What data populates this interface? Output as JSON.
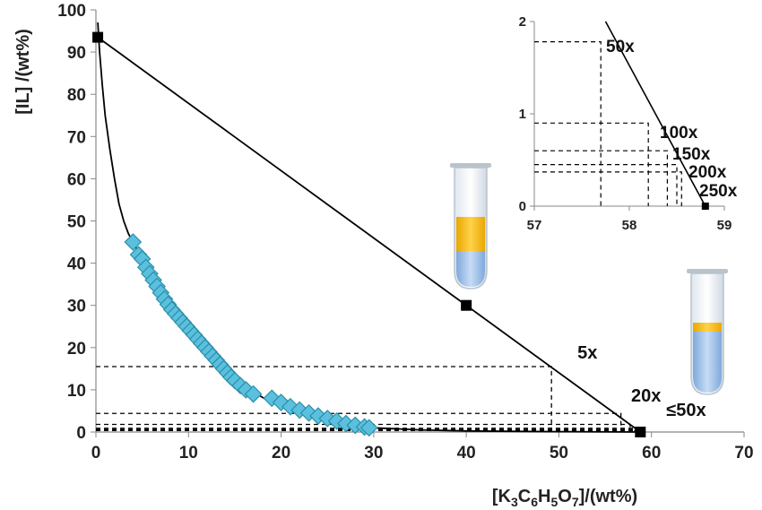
{
  "chart_data": [
    {
      "type": "scatter",
      "xlabel": "[K3C6H5O7]/(wt%)",
      "ylabel": "[IL] /(wt%)",
      "xlim": [
        0,
        70
      ],
      "ylim": [
        0,
        100
      ],
      "x_ticks": [
        "0",
        "10",
        "20",
        "30",
        "40",
        "50",
        "60",
        "70"
      ],
      "y_ticks": [
        "0",
        "10",
        "20",
        "30",
        "40",
        "50",
        "60",
        "70",
        "80",
        "90",
        "100"
      ],
      "grid": false,
      "binodal_points": [
        [
          4,
          45
        ],
        [
          4.6,
          42
        ],
        [
          5,
          41
        ],
        [
          5.4,
          39
        ],
        [
          5.8,
          37.5
        ],
        [
          6.2,
          36
        ],
        [
          6.6,
          34.5
        ],
        [
          7,
          33
        ],
        [
          7.4,
          31.5
        ],
        [
          7.8,
          30.2
        ],
        [
          8.2,
          29
        ],
        [
          8.6,
          28
        ],
        [
          9,
          27
        ],
        [
          9.4,
          26
        ],
        [
          9.8,
          25
        ],
        [
          10.2,
          24
        ],
        [
          10.6,
          23
        ],
        [
          11,
          22
        ],
        [
          11.4,
          21
        ],
        [
          11.8,
          20
        ],
        [
          12.2,
          19
        ],
        [
          12.6,
          18
        ],
        [
          13,
          17
        ],
        [
          13.4,
          16
        ],
        [
          13.8,
          15
        ],
        [
          14.2,
          14
        ],
        [
          14.6,
          13
        ],
        [
          15,
          12.2
        ],
        [
          15.6,
          11
        ],
        [
          16.2,
          10
        ],
        [
          17,
          9
        ],
        [
          19,
          8
        ],
        [
          20,
          7
        ],
        [
          21,
          6
        ],
        [
          22,
          5.2
        ],
        [
          23,
          4.5
        ],
        [
          24,
          3.8
        ],
        [
          25,
          3.2
        ],
        [
          26,
          2.6
        ],
        [
          27,
          2
        ],
        [
          28,
          1.6
        ],
        [
          29,
          1.2
        ],
        [
          29.5,
          1
        ]
      ],
      "binodal_curve": [
        [
          0.2,
          97
        ],
        [
          0.4,
          90
        ],
        [
          0.7,
          82
        ],
        [
          1,
          75
        ],
        [
          1.5,
          67
        ],
        [
          2,
          60
        ],
        [
          2.5,
          54
        ],
        [
          3,
          50
        ],
        [
          3.5,
          47
        ],
        [
          4,
          45
        ],
        [
          5,
          41
        ],
        [
          6,
          37
        ],
        [
          7,
          33
        ],
        [
          8,
          29.5
        ],
        [
          9,
          26.5
        ],
        [
          10,
          24
        ],
        [
          11,
          21.5
        ],
        [
          12,
          19.3
        ],
        [
          13,
          17
        ],
        [
          14,
          14.8
        ],
        [
          15,
          12.8
        ],
        [
          16,
          11
        ],
        [
          17,
          9.5
        ],
        [
          18,
          8.2
        ],
        [
          19,
          7
        ],
        [
          20,
          6
        ],
        [
          22,
          4.5
        ],
        [
          24,
          3.2
        ],
        [
          26,
          2.2
        ],
        [
          28,
          1.5
        ],
        [
          30,
          1
        ],
        [
          35,
          0.5
        ],
        [
          40,
          0.25
        ],
        [
          50,
          0.08
        ],
        [
          58.8,
          0
        ]
      ],
      "tie_line": [
        [
          0.2,
          93.5
        ],
        [
          58.8,
          0
        ]
      ],
      "tie_line_points": [
        [
          0.2,
          93.5
        ],
        [
          40,
          30
        ],
        [
          58.8,
          0
        ]
      ],
      "dashed_levels": [
        {
          "x": 49.2,
          "y": 15.5,
          "label": "5x"
        },
        {
          "x": 56.7,
          "y": 4.4,
          "label": "20x"
        },
        {
          "x": 57.7,
          "y": 1.8,
          "label": ""
        },
        {
          "x": 58.2,
          "y": 0.9,
          "label": ""
        },
        {
          "x": 58.4,
          "y": 0.6,
          "label": ""
        },
        {
          "x": 58.5,
          "y": 0.45,
          "label": ""
        },
        {
          "x": 58.6,
          "y": 0.35,
          "label": ""
        }
      ],
      "annotations": [
        "5x",
        "20x",
        "≤50x"
      ]
    },
    {
      "type": "line",
      "role": "inset",
      "xlim": [
        57,
        59
      ],
      "ylim": [
        0,
        2
      ],
      "x_ticks": [
        "57",
        "58",
        "59"
      ],
      "y_ticks": [
        "0",
        "1",
        "2"
      ],
      "line": [
        [
          57.75,
          2.0
        ],
        [
          58.8,
          0
        ]
      ],
      "end_point": [
        58.8,
        0
      ],
      "dashed_levels": [
        {
          "x": 57.7,
          "y": 1.78,
          "label": "50x"
        },
        {
          "x": 58.2,
          "y": 0.9,
          "label": "100x"
        },
        {
          "x": 58.4,
          "y": 0.6,
          "label": "150x"
        },
        {
          "x": 58.5,
          "y": 0.45,
          "label": "200x"
        },
        {
          "x": 58.55,
          "y": 0.37,
          "label": "250x"
        }
      ]
    }
  ],
  "tube_icons": [
    "test-tube-icon",
    "test-tube-icon"
  ],
  "colors": {
    "marker_fill": "#5bc0de",
    "marker_stroke": "#2a8fa8",
    "line": "#000000",
    "tube_top": "#f6c21b",
    "tube_bottom": "#9fc4ec"
  }
}
